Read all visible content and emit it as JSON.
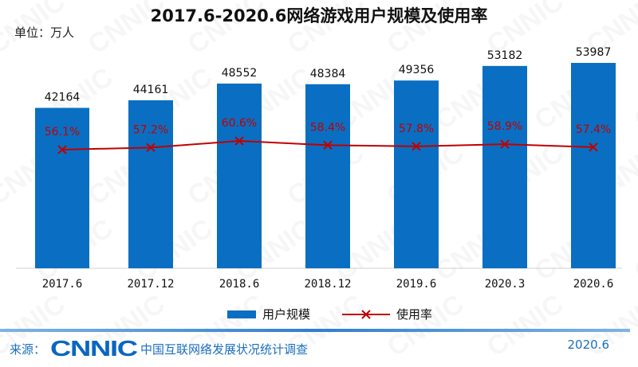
{
  "chart_data": {
    "type": "bar",
    "title": "2017.6-2020.6网络游戏用户规模及使用率",
    "unit_label": "单位：万人",
    "categories": [
      "2017.6",
      "2017.12",
      "2018.6",
      "2018.12",
      "2019.6",
      "2020.3",
      "2020.6"
    ],
    "series": [
      {
        "name": "用户规模",
        "type": "bar",
        "color": "#0a6fc2",
        "values": [
          42164,
          44161,
          48552,
          48384,
          49356,
          53182,
          53987
        ]
      },
      {
        "name": "使用率",
        "type": "line",
        "color": "#c00000",
        "unit": "%",
        "values": [
          56.1,
          57.2,
          60.6,
          58.4,
          57.8,
          58.9,
          57.4
        ],
        "labels": [
          "56.1%",
          "57.2%",
          "60.6%",
          "58.4%",
          "57.8%",
          "58.9%",
          "57.4%"
        ]
      }
    ],
    "grid": false,
    "legend": "bottom"
  },
  "footer": {
    "source_label": "来源：",
    "logo": "CNNIC",
    "org": "中国互联网络发展状况统计调查",
    "date": "2020.6"
  },
  "watermark": "CNNIC"
}
